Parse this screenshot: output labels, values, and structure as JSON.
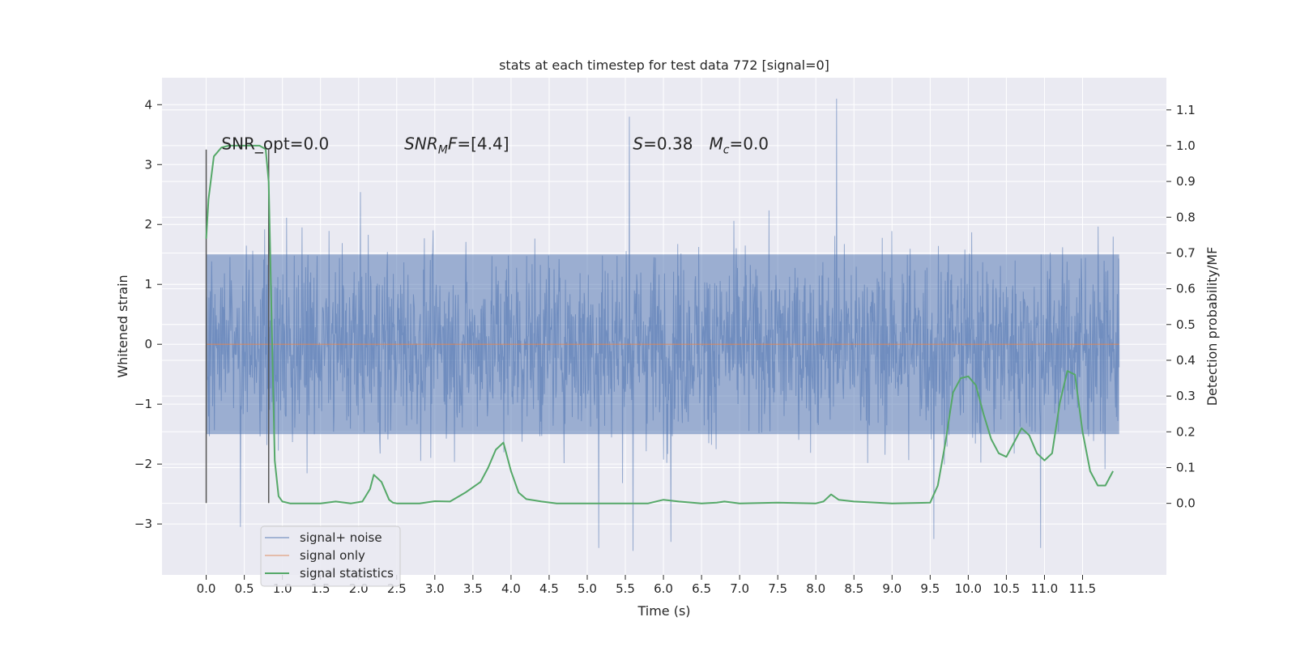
{
  "chart_data": {
    "type": "line",
    "title": "stats at each timestep for test data 772 [signal=0]",
    "xlabel": "Time (s)",
    "ylabel_left": "Whitened strain",
    "ylabel_right": "Detection probability/MF",
    "xlim": [
      -0.58,
      12.6
    ],
    "ylim_left": [
      -3.85,
      4.45
    ],
    "ylim_right": [
      -0.2,
      1.19
    ],
    "x_ticks": [
      0.0,
      0.5,
      1.0,
      1.5,
      2.0,
      2.5,
      3.0,
      3.5,
      4.0,
      4.5,
      5.0,
      5.5,
      6.0,
      6.5,
      7.0,
      7.5,
      8.0,
      8.5,
      9.0,
      9.5,
      10.0,
      10.5,
      11.0,
      11.5
    ],
    "y_ticks_left": [
      -3,
      -2,
      -1,
      0,
      1,
      2,
      3,
      4
    ],
    "y_ticks_right": [
      0.0,
      0.1,
      0.2,
      0.3,
      0.4,
      0.5,
      0.6,
      0.7,
      0.8,
      0.9,
      1.0,
      1.1
    ],
    "grid": true,
    "legend_position": "bottom-left",
    "annotations": [
      {
        "text": "SNR_opt=0.0",
        "x": 0.2,
        "y_right": 0.99
      },
      {
        "text": "SNR_MF=[4.4]",
        "x": 2.6,
        "y_right": 0.99
      },
      {
        "text": "S=0.38",
        "x": 5.6,
        "y_right": 0.99
      },
      {
        "text": "M_c=0.0",
        "x": 6.6,
        "y_right": 0.99
      }
    ],
    "vertical_markers": [
      {
        "x": 0.0,
        "y_range_left": [
          -2.65,
          3.25
        ]
      },
      {
        "x": 0.82,
        "y_range_left": [
          -2.65,
          3.25
        ]
      }
    ],
    "series": [
      {
        "name": "signal+ noise",
        "axis": "left",
        "color": "#4c72b0",
        "kind": "noise_band",
        "x_range": [
          0.0,
          11.98
        ],
        "core_band": [
          -1.5,
          1.5
        ],
        "typical_peak_range": [
          -2.2,
          2.2
        ],
        "max_value": 4.1,
        "min_value": -3.45,
        "notable_peaks": [
          {
            "x": 5.55,
            "y": 3.8
          },
          {
            "x": 8.27,
            "y": 4.1
          },
          {
            "x": 6.1,
            "y": -3.3
          },
          {
            "x": 5.15,
            "y": -3.4
          },
          {
            "x": 5.6,
            "y": -3.45
          },
          {
            "x": 10.95,
            "y": -3.4
          },
          {
            "x": 0.45,
            "y": -3.05
          },
          {
            "x": 9.55,
            "y": -3.25
          }
        ]
      },
      {
        "name": "signal only",
        "axis": "left",
        "color": "#dd8452",
        "x": [
          0.0,
          11.98
        ],
        "values": [
          0.0,
          0.0
        ]
      },
      {
        "name": "signal statistics",
        "axis": "right",
        "color": "#55a868",
        "x": [
          0.0,
          0.03,
          0.1,
          0.2,
          0.3,
          0.5,
          0.7,
          0.78,
          0.82,
          0.86,
          0.9,
          0.95,
          1.0,
          1.1,
          1.3,
          1.5,
          1.7,
          1.9,
          2.05,
          2.15,
          2.2,
          2.3,
          2.4,
          2.45,
          2.5,
          2.6,
          2.8,
          3.0,
          3.2,
          3.4,
          3.6,
          3.7,
          3.8,
          3.9,
          4.0,
          4.1,
          4.2,
          4.4,
          4.6,
          4.8,
          5.0,
          5.5,
          5.8,
          6.0,
          6.2,
          6.5,
          6.7,
          6.8,
          7.0,
          7.5,
          8.0,
          8.1,
          8.2,
          8.3,
          8.5,
          9.0,
          9.5,
          9.6,
          9.7,
          9.8,
          9.9,
          10.0,
          10.1,
          10.2,
          10.3,
          10.4,
          10.5,
          10.6,
          10.7,
          10.8,
          10.9,
          11.0,
          11.1,
          11.2,
          11.3,
          11.4,
          11.5,
          11.6,
          11.7,
          11.8,
          11.9
        ],
        "values": [
          0.74,
          0.85,
          0.97,
          0.995,
          1.0,
          1.0,
          1.0,
          0.99,
          0.9,
          0.5,
          0.12,
          0.02,
          0.005,
          0.0,
          0.0,
          0.0,
          0.005,
          0.0,
          0.005,
          0.04,
          0.08,
          0.06,
          0.01,
          0.002,
          0.0,
          0.0,
          0.0,
          0.006,
          0.005,
          0.03,
          0.06,
          0.1,
          0.15,
          0.17,
          0.09,
          0.03,
          0.012,
          0.005,
          0.0,
          0.0,
          0.0,
          0.0,
          0.0,
          0.01,
          0.005,
          0.0,
          0.002,
          0.005,
          0.0,
          0.002,
          0.0,
          0.005,
          0.025,
          0.01,
          0.005,
          0.0,
          0.002,
          0.05,
          0.17,
          0.31,
          0.35,
          0.355,
          0.33,
          0.25,
          0.18,
          0.14,
          0.13,
          0.17,
          0.21,
          0.19,
          0.14,
          0.12,
          0.14,
          0.28,
          0.37,
          0.36,
          0.2,
          0.09,
          0.05,
          0.05,
          0.09
        ]
      }
    ]
  }
}
